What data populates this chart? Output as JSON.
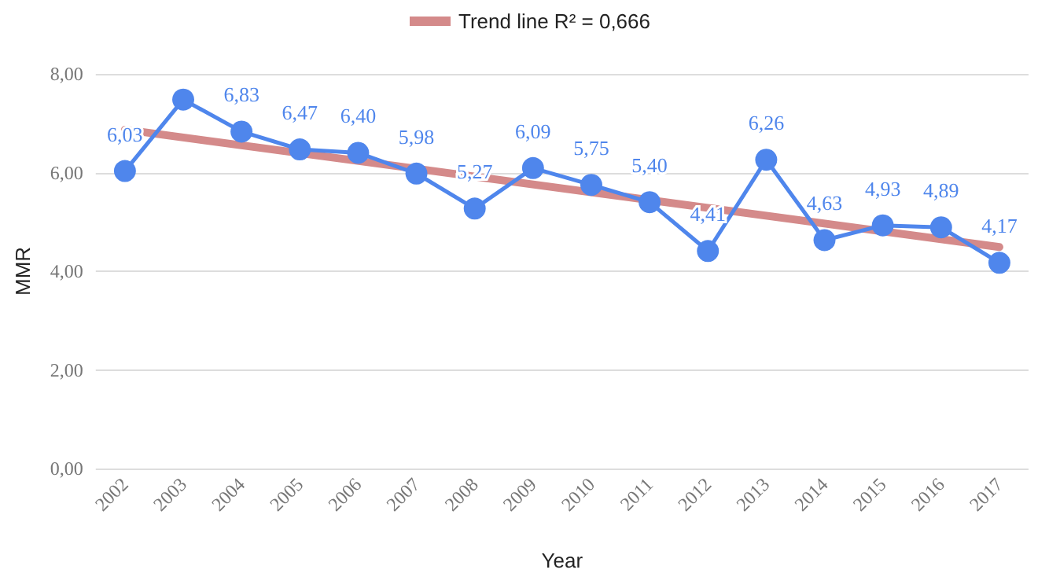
{
  "chart_data": {
    "type": "line",
    "xlabel": "Year",
    "ylabel": "MMR",
    "categories": [
      "2002",
      "2003",
      "2004",
      "2005",
      "2006",
      "2007",
      "2008",
      "2009",
      "2010",
      "2011",
      "2012",
      "2013",
      "2014",
      "2015",
      "2016",
      "2017"
    ],
    "series": [
      {
        "color": "#4f86ec",
        "values": [
          6.03,
          7.48,
          6.83,
          6.47,
          6.4,
          5.98,
          5.27,
          6.09,
          5.75,
          5.4,
          4.41,
          6.26,
          4.63,
          4.93,
          4.89,
          4.17
        ],
        "value_labels": [
          "6,03",
          null,
          "6,83",
          "6,47",
          "6,40",
          "5,98",
          "5,27",
          "6,09",
          "5,75",
          "5,40",
          "4,41",
          "6,26",
          "4,63",
          "4,93",
          "4,89",
          "4,17"
        ],
        "marker": "circle"
      },
      {
        "type": "line",
        "name": "Trend line R² = 0,666",
        "color": "#d48a8a",
        "values": [
          6.87,
          null,
          null,
          null,
          null,
          null,
          null,
          null,
          null,
          null,
          null,
          null,
          null,
          null,
          null,
          4.49
        ],
        "marker": "none"
      }
    ],
    "ylim": [
      0,
      8
    ],
    "yticks": [
      {
        "value": 0,
        "label": "0,00"
      },
      {
        "value": 2,
        "label": "2,00"
      },
      {
        "value": 4,
        "label": "4,00"
      },
      {
        "value": 6,
        "label": "6,00"
      },
      {
        "value": 8,
        "label": "8,00"
      }
    ],
    "grid": "y",
    "legend": "top"
  }
}
